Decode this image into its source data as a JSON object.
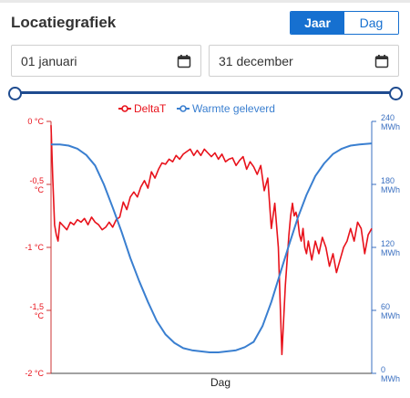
{
  "header": {
    "title": "Locatiegrafiek"
  },
  "period_toggle": {
    "options": [
      "Jaar",
      "Dag"
    ],
    "selected": "Jaar"
  },
  "date_range": {
    "start": "01 januari",
    "end": "31 december",
    "icon": "calendar-icon"
  },
  "range_slider": {
    "start_fraction": 0,
    "end_fraction": 1
  },
  "colors": {
    "accent": "#1670d0",
    "delta": "#e8121b",
    "heat": "#3a7fd0",
    "slider": "#1e4b8f"
  },
  "chart_data": {
    "type": "line",
    "xlabel": "Dag",
    "legend_position": "top",
    "y_left": {
      "ylim": [
        -2,
        0
      ],
      "ticks": [
        {
          "v": 0,
          "lines": [
            "0 °C"
          ]
        },
        {
          "v": -0.5,
          "lines": [
            "-0,5",
            "°C"
          ]
        },
        {
          "v": -1,
          "lines": [
            "-1 °C"
          ]
        },
        {
          "v": -1.5,
          "lines": [
            "-1,5",
            "°C"
          ]
        },
        {
          "v": -2,
          "lines": [
            "-2 °C"
          ]
        }
      ]
    },
    "y_right": {
      "ylim": [
        0,
        240
      ],
      "ticks": [
        {
          "v": 240,
          "lines": [
            "240",
            "MWh"
          ]
        },
        {
          "v": 180,
          "lines": [
            "180",
            "MWh"
          ]
        },
        {
          "v": 120,
          "lines": [
            "120",
            "MWh"
          ]
        },
        {
          "v": 60,
          "lines": [
            "60",
            "MWh"
          ]
        },
        {
          "v": 0,
          "lines": [
            "0",
            "MWh"
          ]
        }
      ]
    },
    "series": [
      {
        "name": "DeltaT",
        "axis": "left",
        "color": "#e8121b",
        "x": [
          0,
          2,
          4,
          6,
          8,
          10,
          14,
          18,
          22,
          26,
          30,
          34,
          38,
          42,
          46,
          50,
          54,
          58,
          62,
          66,
          70,
          74,
          78,
          82,
          86,
          90,
          94,
          98,
          102,
          106,
          110,
          114,
          118,
          122,
          126,
          130,
          134,
          138,
          142,
          146,
          150,
          154,
          158,
          162,
          166,
          170,
          174,
          178,
          182,
          186,
          190,
          194,
          198,
          202,
          206,
          210,
          214,
          218,
          222,
          226,
          230,
          234,
          238,
          242,
          246,
          250,
          254,
          258,
          262,
          266,
          270,
          272,
          274,
          276,
          278,
          280,
          282,
          284,
          286,
          288,
          290,
          292,
          296,
          300,
          304,
          308,
          312,
          316,
          320,
          324,
          328,
          332,
          336,
          340,
          344,
          348,
          352,
          356,
          360,
          364
        ],
        "values": [
          -0.03,
          -0.45,
          -0.82,
          -0.9,
          -0.95,
          -0.8,
          -0.83,
          -0.86,
          -0.8,
          -0.82,
          -0.78,
          -0.8,
          -0.77,
          -0.82,
          -0.76,
          -0.8,
          -0.82,
          -0.86,
          -0.84,
          -0.8,
          -0.84,
          -0.78,
          -0.76,
          -0.64,
          -0.7,
          -0.6,
          -0.56,
          -0.6,
          -0.52,
          -0.47,
          -0.53,
          -0.4,
          -0.45,
          -0.38,
          -0.33,
          -0.34,
          -0.3,
          -0.32,
          -0.27,
          -0.3,
          -0.26,
          -0.24,
          -0.22,
          -0.27,
          -0.23,
          -0.27,
          -0.22,
          -0.25,
          -0.28,
          -0.25,
          -0.3,
          -0.26,
          -0.32,
          -0.3,
          -0.29,
          -0.35,
          -0.31,
          -0.28,
          -0.38,
          -0.32,
          -0.36,
          -0.42,
          -0.35,
          -0.55,
          -0.45,
          -0.85,
          -0.65,
          -1.0,
          -1.85,
          -1.3,
          -0.9,
          -0.75,
          -0.65,
          -0.75,
          -0.72,
          -0.78,
          -0.9,
          -0.95,
          -0.85,
          -1.0,
          -1.05,
          -0.95,
          -1.1,
          -0.95,
          -1.05,
          -0.92,
          -1.0,
          -1.15,
          -1.05,
          -1.2,
          -1.1,
          -1.0,
          -0.95,
          -0.85,
          -0.95,
          -0.8,
          -0.85,
          -1.05,
          -0.9,
          -0.85
        ]
      },
      {
        "name": "Warmte geleverd",
        "axis": "right",
        "color": "#3a7fd0",
        "x": [
          0,
          10,
          20,
          30,
          40,
          50,
          60,
          70,
          80,
          90,
          100,
          110,
          120,
          130,
          140,
          150,
          160,
          170,
          180,
          190,
          200,
          210,
          220,
          230,
          240,
          250,
          260,
          270,
          280,
          290,
          300,
          310,
          320,
          330,
          340,
          350,
          364
        ],
        "values": [
          218,
          218,
          217,
          214,
          208,
          198,
          180,
          158,
          135,
          110,
          88,
          68,
          50,
          37,
          29,
          24,
          22,
          21,
          20,
          20,
          21,
          22,
          25,
          30,
          45,
          68,
          95,
          122,
          148,
          170,
          188,
          200,
          209,
          214,
          217,
          218,
          219
        ]
      }
    ]
  }
}
